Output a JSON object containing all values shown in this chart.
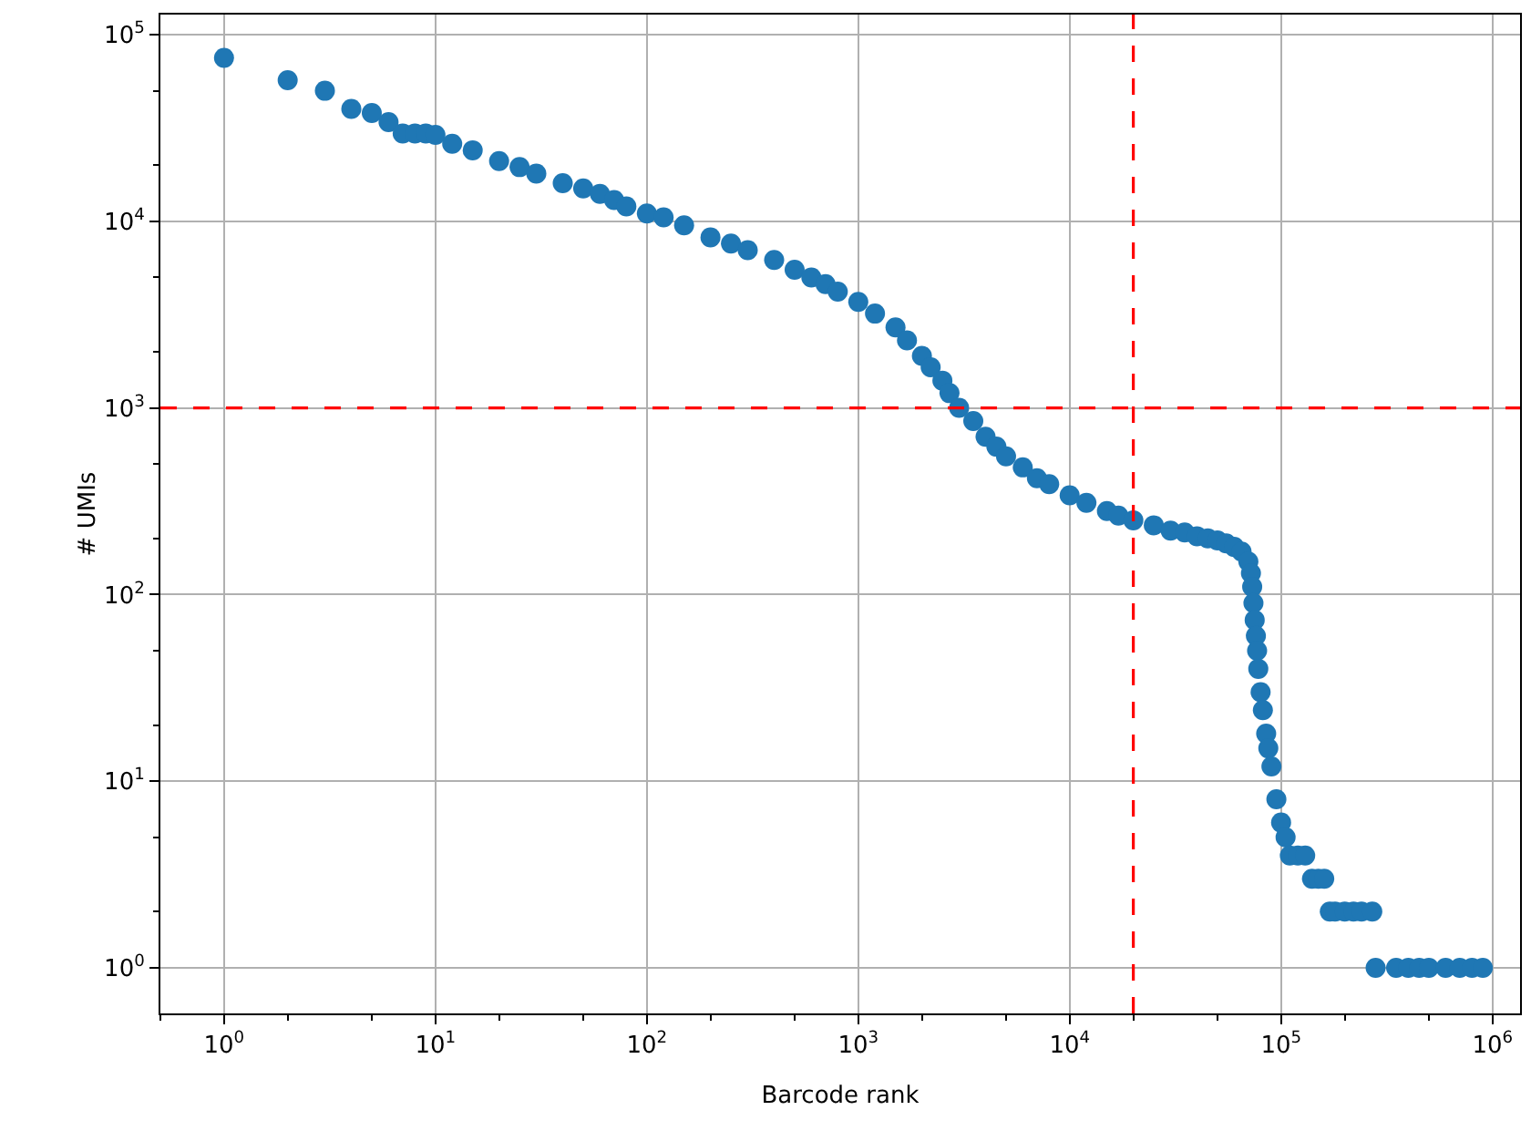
{
  "chart_data": {
    "type": "scatter",
    "xlabel": "Barcode rank",
    "ylabel": "# UMIs",
    "log": "xy",
    "grid": true,
    "marker": "circle",
    "xlim": [
      0.5,
      1350000
    ],
    "ylim": [
      0.57,
      128000
    ],
    "xticks": [
      {
        "value": 1,
        "label": "10$^{0}$"
      },
      {
        "value": 10,
        "label": "10$^{1}$"
      },
      {
        "value": 100,
        "label": "10$^{2}$"
      },
      {
        "value": 1000,
        "label": "10$^{3}$"
      },
      {
        "value": 10000,
        "label": "10$^{4}$"
      },
      {
        "value": 100000,
        "label": "10$^{5}$"
      },
      {
        "value": 1000000,
        "label": "10$^{6}$"
      }
    ],
    "yticks": [
      {
        "value": 1,
        "label": "10$^{0}$"
      },
      {
        "value": 10,
        "label": "10$^{1}$"
      },
      {
        "value": 100,
        "label": "10$^{2}$"
      },
      {
        "value": 1000,
        "label": "10$^{3}$"
      },
      {
        "value": 10000,
        "label": "10$^{4}$"
      },
      {
        "value": 100000,
        "label": "10$^{5}$"
      }
    ],
    "ref_lines": [
      {
        "axis": "y",
        "value": 1000,
        "color": "#ff0000",
        "line_style": "dashed"
      },
      {
        "axis": "x",
        "value": 20000,
        "color": "#ff0000",
        "line_style": "dashed"
      }
    ],
    "series": [
      {
        "color": "#1f77b4",
        "x": [
          1,
          2,
          3,
          4,
          5,
          6,
          7,
          8,
          9,
          10,
          12,
          15,
          20,
          25,
          30,
          40,
          50,
          60,
          70,
          80,
          100,
          120,
          150,
          200,
          250,
          300,
          400,
          500,
          600,
          700,
          800,
          1000,
          1200,
          1500,
          1700,
          2000,
          2200,
          2500,
          2700,
          3000,
          3500,
          4000,
          4500,
          5000,
          6000,
          7000,
          8000,
          10000,
          12000,
          15000,
          17000,
          20000,
          25000,
          30000,
          35000,
          40000,
          45000,
          50000,
          55000,
          60000,
          65000,
          70000,
          72000,
          73000,
          74000,
          75000,
          76000,
          77000,
          78000,
          80000,
          82000,
          85000,
          87000,
          90000,
          95000,
          100000,
          105000,
          110000,
          120000,
          130000,
          140000,
          150000,
          160000,
          170000,
          180000,
          200000,
          220000,
          240000,
          270000,
          280000,
          350000,
          400000,
          450000,
          500000,
          600000,
          700000,
          800000,
          900000
        ],
        "values": [
          75000,
          57000,
          50000,
          40000,
          38000,
          34000,
          29500,
          29500,
          29500,
          29000,
          26000,
          24000,
          21000,
          19500,
          18000,
          16000,
          15000,
          14000,
          13000,
          12000,
          11000,
          10500,
          9500,
          8200,
          7600,
          7000,
          6200,
          5500,
          5000,
          4600,
          4200,
          3700,
          3200,
          2700,
          2300,
          1900,
          1650,
          1400,
          1200,
          1000,
          850,
          700,
          620,
          550,
          480,
          420,
          390,
          340,
          310,
          280,
          265,
          250,
          235,
          220,
          215,
          205,
          200,
          195,
          188,
          180,
          170,
          150,
          130,
          110,
          90,
          73,
          60,
          50,
          40,
          30,
          24,
          18,
          15,
          12,
          8,
          6,
          5,
          4,
          4,
          4,
          3,
          3,
          3,
          2,
          2,
          2,
          2,
          2,
          2,
          1,
          1,
          1,
          1,
          1,
          1,
          1,
          1,
          1
        ]
      }
    ]
  }
}
